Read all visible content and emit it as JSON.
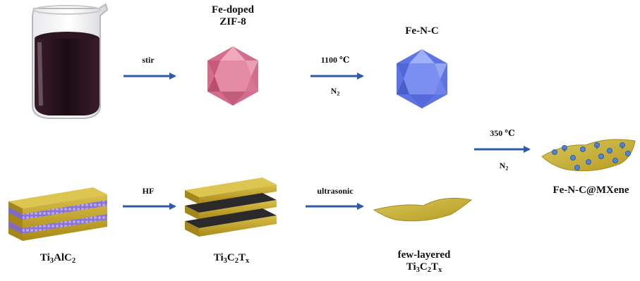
{
  "labels": {
    "fe_zif_line1": "Fe-doped",
    "fe_zif_line2": "ZIF-8",
    "fe_n_c": "Fe-N-C",
    "composite": "Fe-N-C@MXene",
    "ti3alc2": {
      "a": "Ti",
      "b": "3",
      "c": "AlC",
      "d": "2"
    },
    "ti3c2tx": {
      "a": "Ti",
      "b": "3",
      "c": "C",
      "d": "2",
      "e": "T",
      "f": "x"
    },
    "few_layered": "few-layered",
    "ti3c2tx_2": {
      "a": "Ti",
      "b": "3",
      "c": "C",
      "d": "2",
      "e": "T",
      "f": "x"
    }
  },
  "arrows": {
    "stir": "stir",
    "anneal_1100": "1100 ℃",
    "anneal_1100_gas": {
      "a": "N",
      "b": "2"
    },
    "hf": "HF",
    "ultrasonic": "ultrasonic",
    "anneal_350": "350 ℃",
    "anneal_350_gas": {
      "a": "N",
      "b": "2"
    }
  },
  "colors": {
    "arrow": "#2f5aa8",
    "zif_pink": "#d9728f",
    "fenc_blue": "#6a7fe8",
    "mxene_gold": "#c7aa2b",
    "al_purple": "#7e63c9",
    "solution_dark": "#2a1420",
    "particle_blue": "#4f86d8"
  }
}
